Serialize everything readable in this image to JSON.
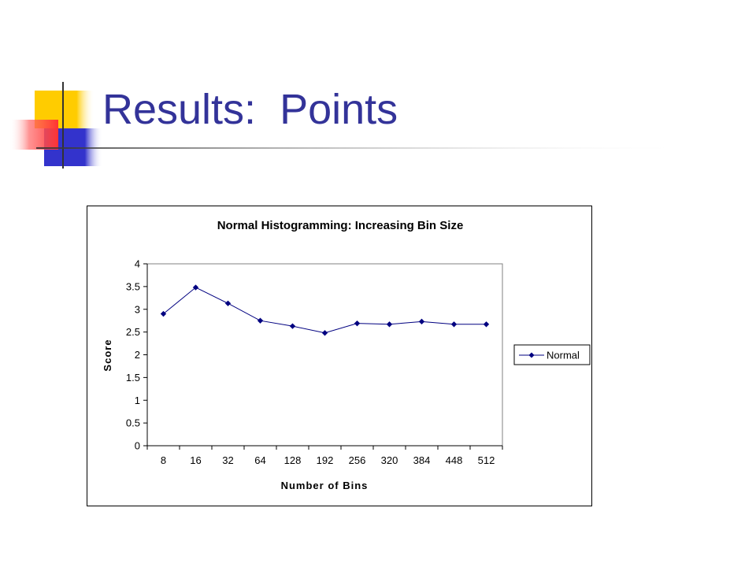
{
  "slide": {
    "title": "Results:  Points",
    "accent_colors": {
      "title": "#333399",
      "square_yellow": "#FFCC00",
      "square_blue": "#3333CC",
      "square_red": "#FF3333"
    }
  },
  "chart_data": {
    "type": "line",
    "title": "Normal Histogramming: Increasing Bin Size",
    "xlabel": "Number of Bins",
    "ylabel": "Score",
    "categories": [
      "8",
      "16",
      "32",
      "64",
      "128",
      "192",
      "256",
      "320",
      "384",
      "448",
      "512"
    ],
    "x_tick_labels": [
      "8",
      "16",
      "32",
      "64",
      "128",
      "192",
      "256",
      "320",
      "384",
      "448",
      "512"
    ],
    "series": [
      {
        "name": "Normal",
        "color": "#000080",
        "values": [
          2.9,
          3.48,
          3.13,
          2.75,
          2.63,
          2.48,
          2.69,
          2.67,
          2.73,
          2.67,
          2.67
        ]
      }
    ],
    "ylim": [
      0,
      4
    ],
    "y_ticks": [
      0,
      0.5,
      1,
      1.5,
      2,
      2.5,
      3,
      3.5,
      4
    ],
    "y_tick_labels": [
      "0",
      "0.5",
      "1",
      "1.5",
      "2",
      "2.5",
      "3",
      "3.5",
      "4"
    ],
    "grid": false,
    "legend": {
      "placement": "right",
      "entries": [
        "Normal"
      ]
    }
  }
}
